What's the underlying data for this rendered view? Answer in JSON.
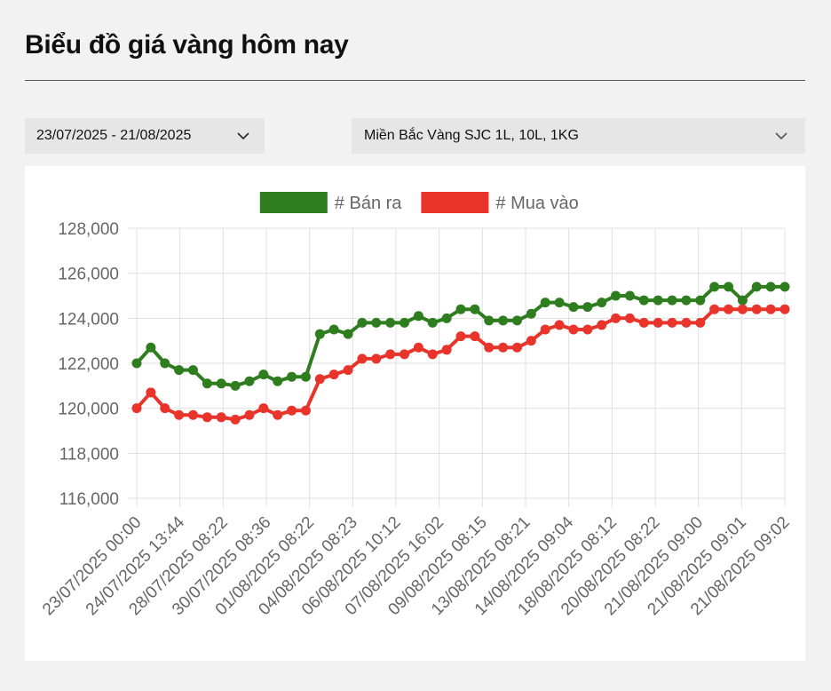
{
  "page": {
    "title": "Biểu đồ giá vàng hôm nay"
  },
  "filters": {
    "date_range": "23/07/2025 - 21/08/2025",
    "product": "Miền Bắc Vàng SJC 1L, 10L, 1KG"
  },
  "icons": {
    "dropdown": "chevron-down-icon"
  },
  "colors": {
    "sell": "#2e7d1e",
    "buy": "#e8342a",
    "grid": "#e0e0e0",
    "text": "#666666"
  },
  "chart_data": {
    "type": "line",
    "ylim": [
      116000,
      128000
    ],
    "y_ticks": [
      "116,000",
      "118,000",
      "120,000",
      "122,000",
      "124,000",
      "126,000",
      "128,000"
    ],
    "x_tick_labels": [
      "23/07/2025 00:00",
      "24/07/2025 13:44",
      "28/07/2025 08:22",
      "30/07/2025 08:36",
      "01/08/2025 08:22",
      "04/08/2025 08:23",
      "06/08/2025 10:12",
      "07/08/2025 16:02",
      "09/08/2025 08:15",
      "13/08/2025 08:21",
      "14/08/2025 09:04",
      "18/08/2025 08:12",
      "20/08/2025 08:22",
      "21/08/2025 09:00",
      "21/08/2025 09:01",
      "21/08/2025 09:02"
    ],
    "legend_position": "top",
    "grid": true,
    "series": [
      {
        "name": "# Bán ra",
        "color": "#2e7d1e",
        "values": [
          122000,
          122700,
          122000,
          121700,
          121700,
          121100,
          121100,
          121000,
          121200,
          121500,
          121200,
          121400,
          121400,
          123300,
          123500,
          123300,
          123800,
          123800,
          123800,
          123800,
          124100,
          123800,
          124000,
          124400,
          124400,
          123900,
          123900,
          123900,
          124200,
          124700,
          124700,
          124500,
          124500,
          124700,
          125000,
          125000,
          124800,
          124800,
          124800,
          124800,
          124800,
          125400,
          125400,
          124800,
          125400,
          125400,
          125400
        ]
      },
      {
        "name": "# Mua vào",
        "color": "#e8342a",
        "values": [
          120000,
          120700,
          120000,
          119700,
          119700,
          119600,
          119600,
          119500,
          119700,
          120000,
          119700,
          119900,
          119900,
          121300,
          121500,
          121700,
          122200,
          122200,
          122400,
          122400,
          122700,
          122400,
          122600,
          123200,
          123200,
          122700,
          122700,
          122700,
          123000,
          123500,
          123700,
          123500,
          123500,
          123700,
          124000,
          124000,
          123800,
          123800,
          123800,
          123800,
          123800,
          124400,
          124400,
          124400,
          124400,
          124400,
          124400
        ]
      }
    ]
  }
}
